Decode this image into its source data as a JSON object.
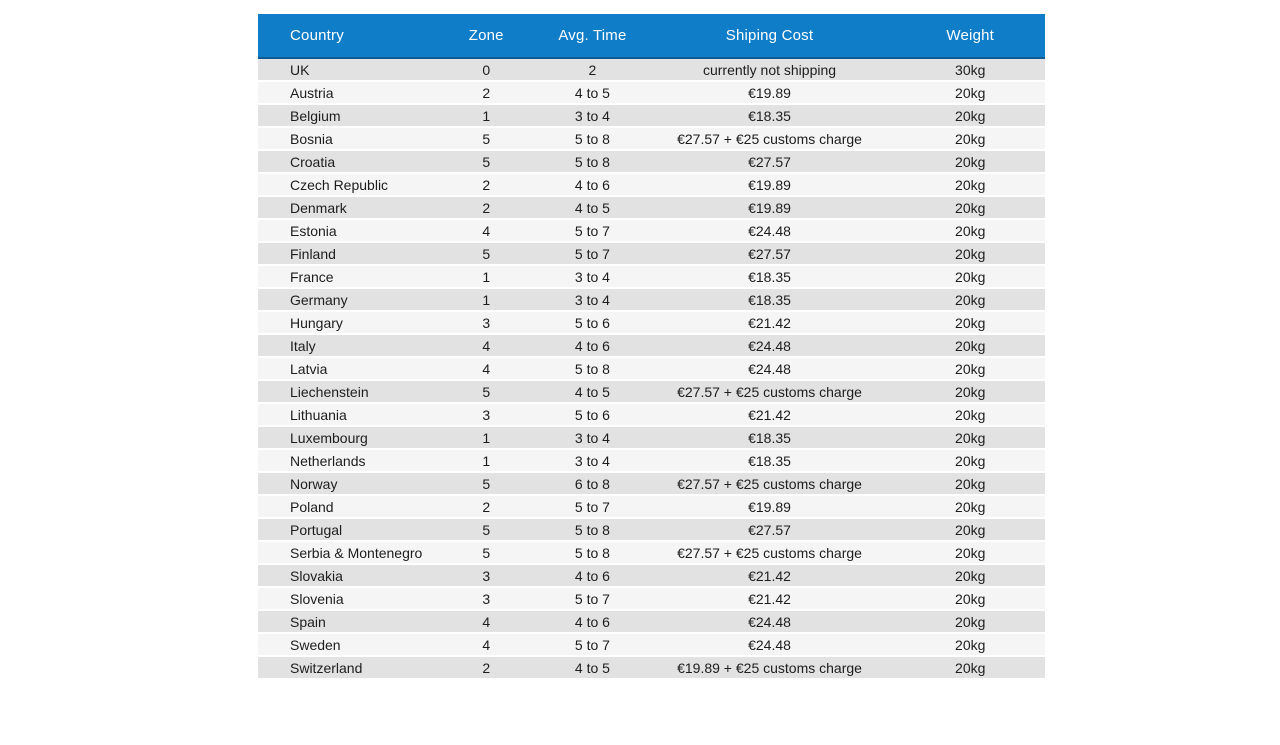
{
  "chart_data": {
    "type": "table",
    "title": "",
    "columns": [
      {
        "label": "Country",
        "align": "left"
      },
      {
        "label": "Zone",
        "align": "center"
      },
      {
        "label": "Avg. Time",
        "align": "center"
      },
      {
        "label": "Shiping Cost",
        "align": "center"
      },
      {
        "label": "Weight",
        "align": "center"
      }
    ],
    "rows": [
      [
        "UK",
        "0",
        "2",
        "currently not shipping",
        "30kg"
      ],
      [
        "Austria",
        "2",
        "4 to 5",
        "€19.89",
        "20kg"
      ],
      [
        "Belgium",
        "1",
        "3 to 4",
        "€18.35",
        "20kg"
      ],
      [
        "Bosnia",
        "5",
        "5 to 8",
        "€27.57 + €25 customs charge",
        "20kg"
      ],
      [
        "Croatia",
        "5",
        "5 to 8",
        "€27.57",
        "20kg"
      ],
      [
        "Czech Republic",
        "2",
        "4 to 6",
        "€19.89",
        "20kg"
      ],
      [
        "Denmark",
        "2",
        "4 to 5",
        "€19.89",
        "20kg"
      ],
      [
        "Estonia",
        "4",
        "5 to 7",
        "€24.48",
        "20kg"
      ],
      [
        "Finland",
        "5",
        "5 to 7",
        "€27.57",
        "20kg"
      ],
      [
        "France",
        "1",
        "3 to 4",
        "€18.35",
        "20kg"
      ],
      [
        "Germany",
        "1",
        "3 to 4",
        "€18.35",
        "20kg"
      ],
      [
        "Hungary",
        "3",
        "5 to 6",
        "€21.42",
        "20kg"
      ],
      [
        "Italy",
        "4",
        "4 to 6",
        "€24.48",
        "20kg"
      ],
      [
        "Latvia",
        "4",
        "5 to 8",
        "€24.48",
        "20kg"
      ],
      [
        "Liechenstein",
        "5",
        "4 to 5",
        "€27.57 + €25 customs charge",
        "20kg"
      ],
      [
        "Lithuania",
        "3",
        "5 to 6",
        "€21.42",
        "20kg"
      ],
      [
        "Luxembourg",
        "1",
        "3 to 4",
        "€18.35",
        "20kg"
      ],
      [
        "Netherlands",
        "1",
        "3 to 4",
        "€18.35",
        "20kg"
      ],
      [
        "Norway",
        "5",
        "6 to 8",
        "€27.57 + €25 customs charge",
        "20kg"
      ],
      [
        "Poland",
        "2",
        "5 to 7",
        "€19.89",
        "20kg"
      ],
      [
        "Portugal",
        "5",
        "5 to 8",
        "€27.57",
        "20kg"
      ],
      [
        "Serbia & Montenegro",
        "5",
        "5 to 8",
        "€27.57 + €25 customs charge",
        "20kg"
      ],
      [
        "Slovakia",
        "3",
        "4 to 6",
        "€21.42",
        "20kg"
      ],
      [
        "Slovenia",
        "3",
        "5 to 7",
        "€21.42",
        "20kg"
      ],
      [
        "Spain",
        "4",
        "4 to 6",
        "€24.48",
        "20kg"
      ],
      [
        "Sweden",
        "4",
        "5 to 7",
        "€24.48",
        "20kg"
      ],
      [
        "Switzerland",
        "2",
        "4 to 5",
        "€19.89 + €25 customs charge",
        "20kg"
      ]
    ]
  },
  "colors": {
    "page_bg": "#ffffff",
    "header_bg": "#0f7dc8",
    "header_border": "#0e5a94",
    "header_text": "#ffffff",
    "row_odd_bg": "#e2e2e2",
    "row_even_bg": "#f5f5f5",
    "row_text": "#1d1d1d"
  }
}
